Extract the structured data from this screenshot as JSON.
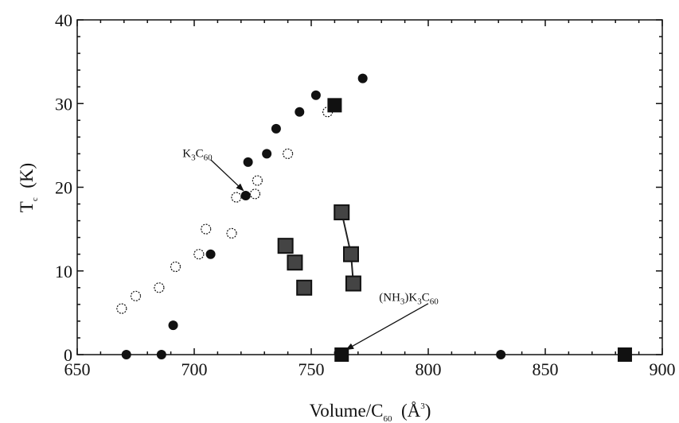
{
  "chart_data": {
    "type": "scatter",
    "xlabel": {
      "main": "Volume/C",
      "sub": "60",
      "unit_open": "  (Å",
      "sup": "3",
      "unit_close": ")"
    },
    "ylabel": {
      "main": "T",
      "sub": "c",
      "unit": "  (K)"
    },
    "xlim": [
      650,
      900
    ],
    "ylim": [
      0,
      40
    ],
    "x_ticks": [
      650,
      700,
      750,
      800,
      850,
      900
    ],
    "y_ticks": [
      0,
      10,
      20,
      30,
      40
    ],
    "x_tick_labels": [
      "650",
      "700",
      "750",
      "800",
      "850",
      "900"
    ],
    "y_tick_labels": [
      "0",
      "10",
      "20",
      "30",
      "40"
    ],
    "grid": false,
    "series": [
      {
        "marker": "open-circle",
        "color": "#111111",
        "points": [
          {
            "x": 669,
            "y": 5.5
          },
          {
            "x": 675,
            "y": 7
          },
          {
            "x": 685,
            "y": 8
          },
          {
            "x": 692,
            "y": 10.5
          },
          {
            "x": 702,
            "y": 12
          },
          {
            "x": 705,
            "y": 15
          },
          {
            "x": 716,
            "y": 14.5
          },
          {
            "x": 718,
            "y": 18.8
          },
          {
            "x": 726,
            "y": 19.2
          },
          {
            "x": 727,
            "y": 20.8
          },
          {
            "x": 740,
            "y": 24
          },
          {
            "x": 757,
            "y": 29
          }
        ]
      },
      {
        "marker": "filled-circle",
        "color": "#111111",
        "points": [
          {
            "x": 671,
            "y": 0
          },
          {
            "x": 686,
            "y": 0
          },
          {
            "x": 691,
            "y": 3.5
          },
          {
            "x": 707,
            "y": 12
          },
          {
            "x": 722,
            "y": 19
          },
          {
            "x": 723,
            "y": 23
          },
          {
            "x": 731,
            "y": 24
          },
          {
            "x": 735,
            "y": 27
          },
          {
            "x": 745,
            "y": 29
          },
          {
            "x": 752,
            "y": 31
          },
          {
            "x": 772,
            "y": 33
          },
          {
            "x": 831,
            "y": 0
          }
        ]
      },
      {
        "marker": "filled-square",
        "color": "#111111",
        "points": [
          {
            "x": 760,
            "y": 29.8
          },
          {
            "x": 763,
            "y": 0
          },
          {
            "x": 884,
            "y": 0
          }
        ]
      },
      {
        "marker": "shaded-square",
        "color": "#444444",
        "points": [
          {
            "x": 739,
            "y": 13
          },
          {
            "x": 743,
            "y": 11
          },
          {
            "x": 747,
            "y": 8
          },
          {
            "x": 763,
            "y": 17
          },
          {
            "x": 767,
            "y": 12
          },
          {
            "x": 768,
            "y": 8.5
          }
        ]
      }
    ],
    "connectors": [
      {
        "from": {
          "x": 763,
          "y": 17
        },
        "to": {
          "x": 767,
          "y": 12
        }
      },
      {
        "from": {
          "x": 767,
          "y": 12
        },
        "to": {
          "x": 768,
          "y": 8.5
        }
      }
    ],
    "annotations": [
      {
        "id": "k3c60",
        "label": {
          "main": "K",
          "sub1": "3",
          "mid": "C",
          "sub2": "60"
        },
        "text_at": {
          "x": 695,
          "y": 23.6
        },
        "arrow_from": {
          "x": 707,
          "y": 23.3
        },
        "arrow_to": {
          "x": 721,
          "y": 19.6
        }
      },
      {
        "id": "nh3k3c60",
        "label": {
          "pre": "(NH",
          "sub0": "3",
          "mid0": ")K",
          "sub1": "3",
          "mid": "C",
          "sub2": "60"
        },
        "text_at": {
          "x": 779,
          "y": 6.4
        },
        "arrow_from": {
          "x": 800,
          "y": 6.1
        },
        "arrow_to": {
          "x": 765,
          "y": 0.6
        }
      }
    ]
  }
}
